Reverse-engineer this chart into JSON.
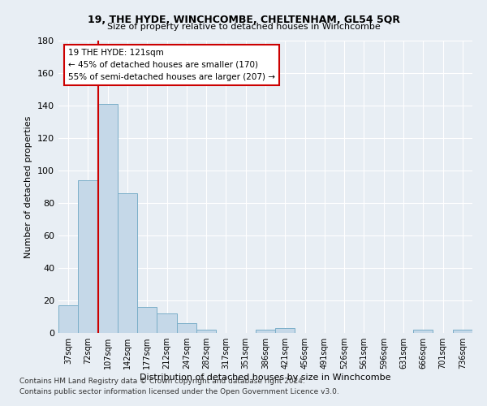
{
  "title": "19, THE HYDE, WINCHCOMBE, CHELTENHAM, GL54 5QR",
  "subtitle": "Size of property relative to detached houses in Winchcombe",
  "xlabel": "Distribution of detached houses by size in Winchcombe",
  "ylabel": "Number of detached properties",
  "bar_labels": [
    "37sqm",
    "72sqm",
    "107sqm",
    "142sqm",
    "177sqm",
    "212sqm",
    "247sqm",
    "282sqm",
    "317sqm",
    "351sqm",
    "386sqm",
    "421sqm",
    "456sqm",
    "491sqm",
    "526sqm",
    "561sqm",
    "596sqm",
    "631sqm",
    "666sqm",
    "701sqm",
    "736sqm"
  ],
  "bar_values": [
    17,
    94,
    141,
    86,
    16,
    12,
    6,
    2,
    0,
    0,
    2,
    3,
    0,
    0,
    0,
    0,
    0,
    0,
    2,
    0,
    2
  ],
  "bar_color": "#c5d8e8",
  "bar_edge_color": "#7aaec8",
  "ylim": [
    0,
    180
  ],
  "yticks": [
    0,
    20,
    40,
    60,
    80,
    100,
    120,
    140,
    160,
    180
  ],
  "annotation_line1": "19 THE HYDE: 121sqm",
  "annotation_line2": "← 45% of detached houses are smaller (170)",
  "annotation_line3": "55% of semi-detached houses are larger (207) →",
  "annotation_box_color": "#cc0000",
  "vline_color": "#cc0000",
  "footer1": "Contains HM Land Registry data © Crown copyright and database right 2024.",
  "footer2": "Contains public sector information licensed under the Open Government Licence v3.0.",
  "background_color": "#e8eef4",
  "plot_bg_color": "#e8eef4"
}
